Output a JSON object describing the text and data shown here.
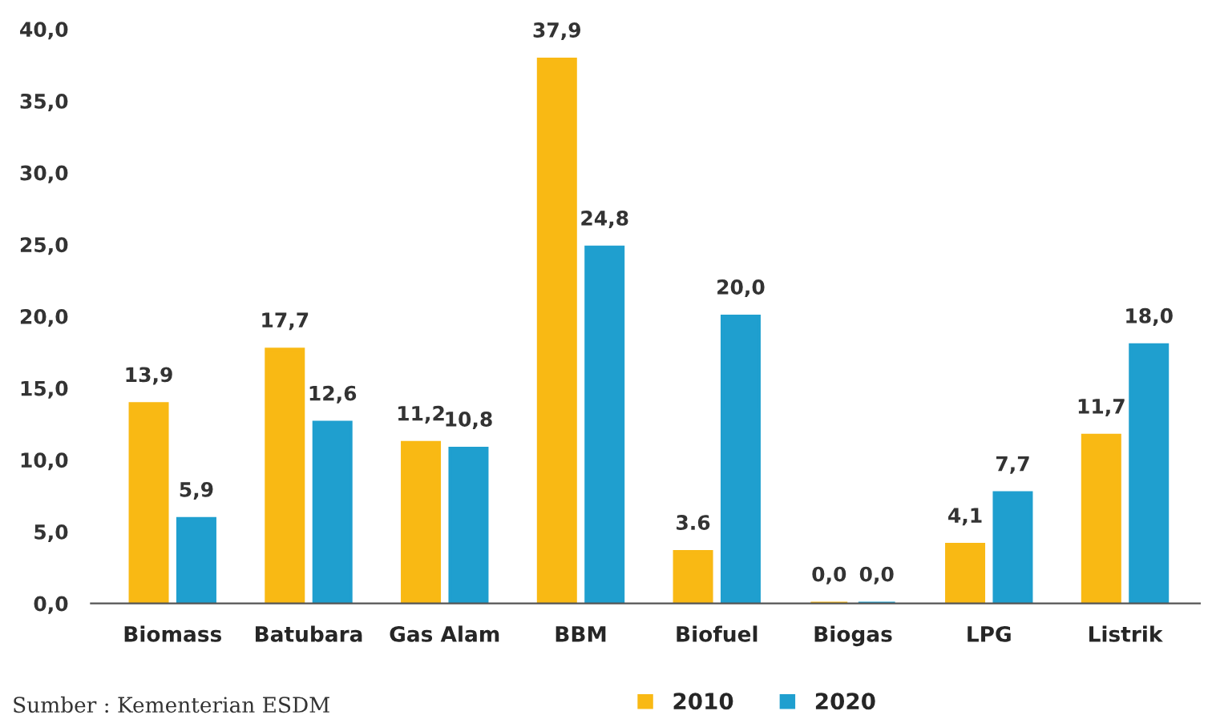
{
  "chart_data": {
    "type": "bar",
    "categories": [
      "Biomass",
      "Batubara",
      "Gas Alam",
      "BBM",
      "Biofuel",
      "Biogas",
      "LPG",
      "Listrik"
    ],
    "series": [
      {
        "name": "2010",
        "color": "#f9b914",
        "values": [
          13.9,
          17.7,
          11.2,
          37.9,
          3.6,
          0.0,
          4.1,
          11.7
        ],
        "value_labels": [
          "13,9",
          "17,7",
          "11,2",
          "37,9",
          "3.6",
          "0,0",
          "4,1",
          "11,7"
        ]
      },
      {
        "name": "2020",
        "color": "#1f9fcf",
        "values": [
          5.9,
          12.6,
          10.8,
          24.8,
          20.0,
          0.0,
          7.7,
          18.0
        ],
        "value_labels": [
          "5,9",
          "12,6",
          "10,8",
          "24,8",
          "20,0",
          "0,0",
          "7,7",
          "18,0"
        ]
      }
    ],
    "ylim": [
      0,
      40
    ],
    "yticks": [
      {
        "value": 0,
        "label": "0,0"
      },
      {
        "value": 5,
        "label": "5,0"
      },
      {
        "value": 10,
        "label": "10,0"
      },
      {
        "value": 15,
        "label": "15,0"
      },
      {
        "value": 20,
        "label": "20,0"
      },
      {
        "value": 25,
        "label": "25,0"
      },
      {
        "value": 30,
        "label": "30,0"
      },
      {
        "value": 35,
        "label": "35,0"
      },
      {
        "value": 40,
        "label": "40,0"
      }
    ],
    "grid": false,
    "legend": "bottom",
    "annotations": [
      "Sumber : Kementerian ESDM"
    ]
  }
}
